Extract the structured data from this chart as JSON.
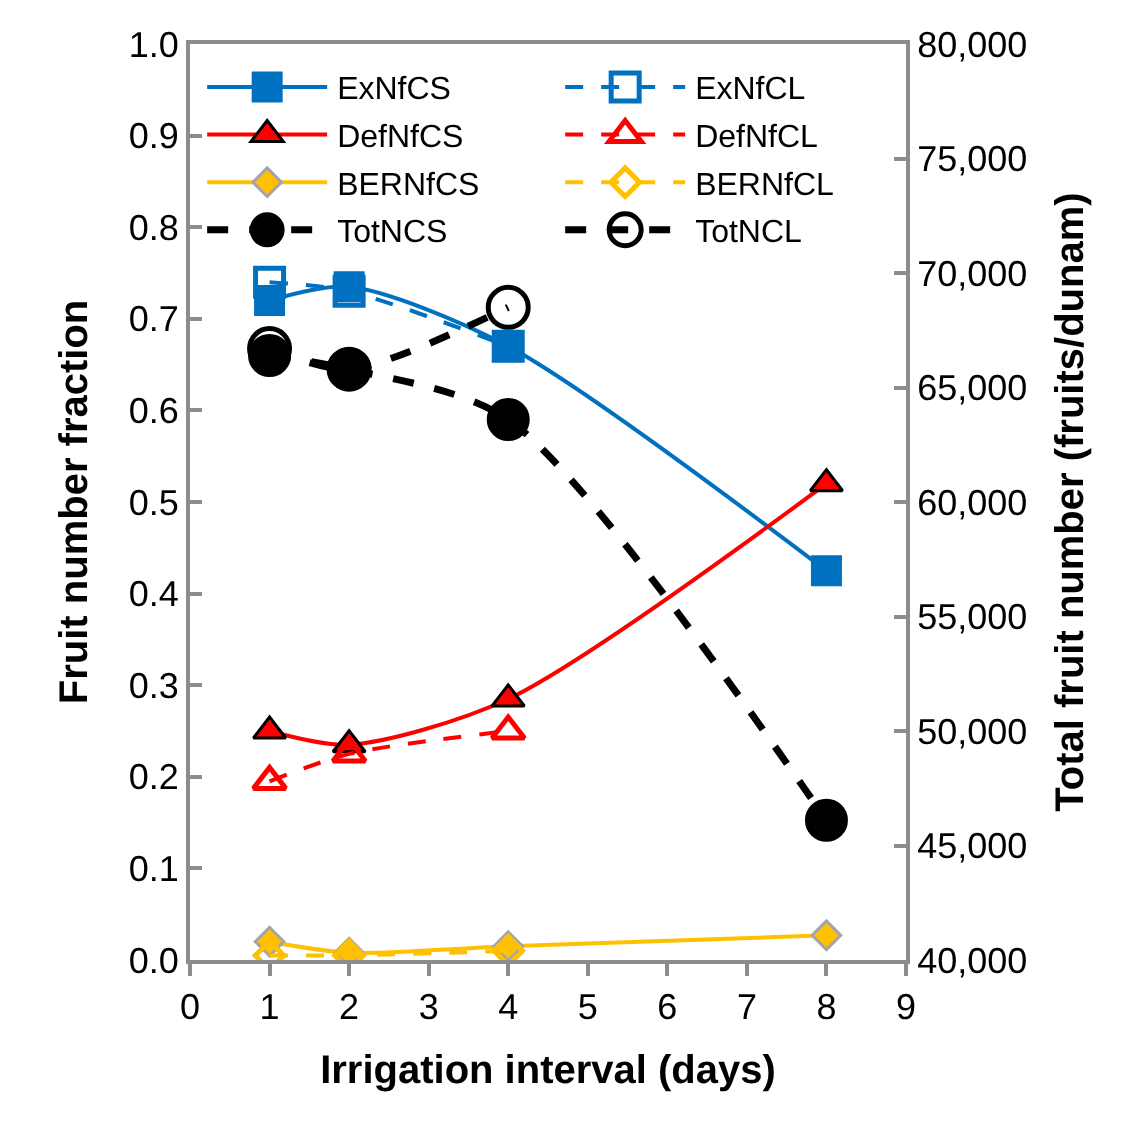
{
  "chart_data": {
    "type": "line",
    "xlabel": "Irrigation interval (days)",
    "ylabel": "Fruit number fraction",
    "y2label": "Total fruit number (fruits/dunam)",
    "xlim": [
      0,
      9
    ],
    "xticks": [
      0,
      1,
      2,
      3,
      4,
      5,
      6,
      7,
      8,
      9
    ],
    "ylim": [
      0,
      1
    ],
    "yticks": [
      {
        "value": 0,
        "label": "0.0"
      },
      0.1,
      0.2,
      0.3,
      0.4,
      0.5,
      0.6,
      0.7,
      0.8,
      0.9,
      {
        "value": 1,
        "label": "1.0"
      }
    ],
    "y2lim": [
      40000,
      80000
    ],
    "y2ticks": [
      {
        "value": 40000,
        "label": "40,000"
      },
      {
        "value": 45000,
        "label": "45,000"
      },
      {
        "value": 50000,
        "label": "50,000"
      },
      {
        "value": 55000,
        "label": "55,000"
      },
      {
        "value": 60000,
        "label": "60,000"
      },
      {
        "value": 65000,
        "label": "65,000"
      },
      {
        "value": 70000,
        "label": "70,000"
      },
      {
        "value": 75000,
        "label": "75,000"
      },
      {
        "value": 80000,
        "label": "80,000"
      }
    ],
    "legend": "top",
    "series": [
      {
        "name": "ExNfCS",
        "color": "#0070c0",
        "x": [
          1,
          2,
          4,
          8
        ],
        "values": [
          0.72,
          0.735,
          0.67,
          0.425
        ],
        "marker": "square",
        "line_style": "solid"
      },
      {
        "name": "ExNfCL",
        "color": "#0070c0",
        "x": [
          1,
          2,
          4
        ],
        "values": [
          0.74,
          0.73,
          0.67
        ],
        "marker": "square-open",
        "line_style": "dashed"
      },
      {
        "name": "DefNfCS",
        "color": "#ff0000",
        "x": [
          1,
          2,
          4,
          8
        ],
        "values": [
          0.25,
          0.235,
          0.285,
          0.52
        ],
        "marker": "triangle",
        "line_style": "solid"
      },
      {
        "name": "DefNfCL",
        "color": "#ff0000",
        "x": [
          1,
          2,
          4
        ],
        "values": [
          0.195,
          0.225,
          0.25
        ],
        "marker": "triangle-open",
        "line_style": "dashed"
      },
      {
        "name": "BERNfCS",
        "color": "#ffc000",
        "x": [
          1,
          2,
          4,
          8
        ],
        "values": [
          0.02,
          0.008,
          0.015,
          0.027
        ],
        "marker": "diamond",
        "line_style": "solid"
      },
      {
        "name": "BERNfCL",
        "color": "#ffc000",
        "x": [
          1,
          2,
          4
        ],
        "values": [
          0.005,
          0.005,
          0.01
        ],
        "marker": "diamond-open",
        "line_style": "dashed"
      },
      {
        "name": "TotNCS",
        "color": "#000000",
        "x": [
          1,
          2,
          4,
          8
        ],
        "values": [
          66400,
          65800,
          63600,
          46100
        ],
        "marker": "circle",
        "line_style": "dashed",
        "axis": "y2"
      },
      {
        "name": "TotNCL",
        "color": "#000000",
        "x": [
          1,
          2,
          4
        ],
        "values": [
          66700,
          65800,
          68500
        ],
        "marker": "circle-open",
        "line_style": "dashed",
        "axis": "y2"
      }
    ]
  }
}
